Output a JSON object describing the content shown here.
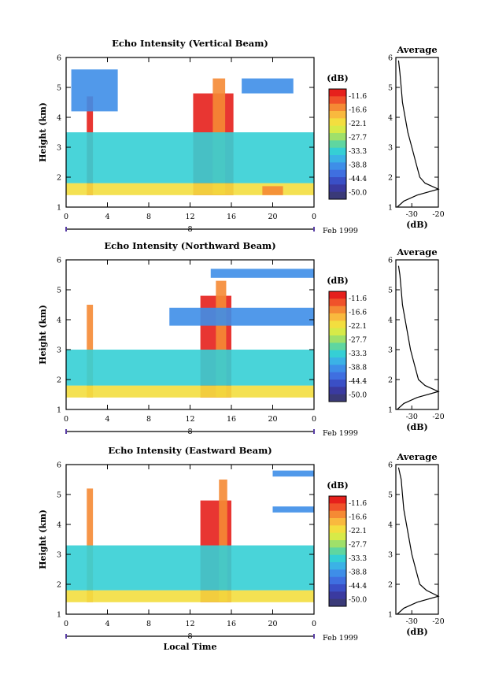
{
  "chart_data": [
    {
      "type": "heatmap",
      "title": "Echo Intensity (Vertical Beam)",
      "xlabel": "",
      "ylabel": "Height (km)",
      "xlim": [
        0,
        24
      ],
      "ylim": [
        1,
        6
      ],
      "xticks": [
        "0",
        "4",
        "8",
        "12",
        "16",
        "20",
        "0"
      ],
      "yticks": [
        "1",
        "2",
        "3",
        "4",
        "5",
        "6"
      ],
      "date_axis": {
        "label": "8",
        "month": "Feb 1999"
      },
      "colorbar": {
        "unit": "(dB)",
        "levels": [
          "-11.6",
          "-16.6",
          "-22.1",
          "-27.7",
          "-33.3",
          "-38.8",
          "-44.4",
          "-50.0"
        ]
      },
      "cells": [
        {
          "x0": 2.0,
          "x1": 2.6,
          "y0": 1.4,
          "y1": 4.7,
          "v": -11.6
        },
        {
          "x0": 12.3,
          "x1": 16.2,
          "y0": 1.4,
          "y1": 4.8,
          "v": -11.6
        },
        {
          "x0": 14.2,
          "x1": 15.4,
          "y0": 1.4,
          "y1": 5.3,
          "v": -16.6
        },
        {
          "x0": 0.0,
          "x1": 24.0,
          "y0": 1.4,
          "y1": 1.8,
          "v": -22.1
        },
        {
          "x0": 19.0,
          "x1": 21.0,
          "y0": 1.4,
          "y1": 1.7,
          "v": -16.6
        },
        {
          "x0": 0.0,
          "x1": 24.0,
          "y0": 1.8,
          "y1": 3.5,
          "v": -33.3
        },
        {
          "x0": 0.5,
          "x1": 5.0,
          "y0": 4.2,
          "y1": 5.6,
          "v": -38.8
        },
        {
          "x0": 17.0,
          "x1": 22.0,
          "y0": 4.8,
          "y1": 5.3,
          "v": -38.8
        }
      ],
      "average": {
        "title": "Average",
        "xlabel": "(dB)",
        "xticks": [
          "-30",
          "-20"
        ],
        "xlim": [
          -36,
          -20
        ],
        "ylim": [
          1,
          6
        ],
        "points": [
          [
            -35.5,
            1.0
          ],
          [
            -33.0,
            1.2
          ],
          [
            -28.0,
            1.4
          ],
          [
            -20.0,
            1.6
          ],
          [
            -25.0,
            1.8
          ],
          [
            -27.0,
            2.0
          ],
          [
            -28.5,
            2.5
          ],
          [
            -30.0,
            3.0
          ],
          [
            -31.5,
            3.5
          ],
          [
            -32.5,
            4.0
          ],
          [
            -33.5,
            4.5
          ],
          [
            -34.0,
            5.0
          ],
          [
            -34.5,
            5.5
          ],
          [
            -35.0,
            5.9
          ]
        ]
      }
    },
    {
      "type": "heatmap",
      "title": "Echo Intensity (Northward Beam)",
      "xlabel": "",
      "ylabel": "Height (km)",
      "xlim": [
        0,
        24
      ],
      "ylim": [
        1,
        6
      ],
      "xticks": [
        "0",
        "4",
        "8",
        "12",
        "16",
        "20",
        "0"
      ],
      "yticks": [
        "1",
        "2",
        "3",
        "4",
        "5",
        "6"
      ],
      "date_axis": {
        "label": "8",
        "month": "Feb 1999"
      },
      "colorbar": {
        "unit": "(dB)",
        "levels": [
          "-11.6",
          "-16.6",
          "-22.1",
          "-27.7",
          "-33.3",
          "-38.8",
          "-44.4",
          "-50.0"
        ]
      },
      "cells": [
        {
          "x0": 2.0,
          "x1": 2.6,
          "y0": 1.4,
          "y1": 4.5,
          "v": -16.6
        },
        {
          "x0": 13.0,
          "x1": 16.0,
          "y0": 1.4,
          "y1": 4.8,
          "v": -11.6
        },
        {
          "x0": 14.5,
          "x1": 15.5,
          "y0": 1.4,
          "y1": 5.3,
          "v": -16.6
        },
        {
          "x0": 0.0,
          "x1": 24.0,
          "y0": 1.4,
          "y1": 1.8,
          "v": -22.1
        },
        {
          "x0": 0.0,
          "x1": 24.0,
          "y0": 1.8,
          "y1": 3.0,
          "v": -33.3
        },
        {
          "x0": 10.0,
          "x1": 24.0,
          "y0": 3.8,
          "y1": 4.4,
          "v": -38.8
        },
        {
          "x0": 14.0,
          "x1": 24.0,
          "y0": 5.4,
          "y1": 5.7,
          "v": -38.8
        }
      ],
      "average": {
        "title": "Average",
        "xlabel": "(dB)",
        "xticks": [
          "-30",
          "-20"
        ],
        "xlim": [
          -36,
          -20
        ],
        "ylim": [
          1,
          6
        ],
        "points": [
          [
            -35.5,
            1.0
          ],
          [
            -33.0,
            1.2
          ],
          [
            -28.0,
            1.4
          ],
          [
            -20.0,
            1.6
          ],
          [
            -25.0,
            1.8
          ],
          [
            -27.5,
            2.0
          ],
          [
            -29.0,
            2.5
          ],
          [
            -30.5,
            3.0
          ],
          [
            -31.5,
            3.5
          ],
          [
            -32.5,
            4.0
          ],
          [
            -33.5,
            4.5
          ],
          [
            -34.0,
            5.0
          ],
          [
            -34.5,
            5.5
          ],
          [
            -35.0,
            5.8
          ]
        ]
      }
    },
    {
      "type": "heatmap",
      "title": "Echo Intensity (Eastward Beam)",
      "xlabel": "Local Time",
      "ylabel": "Height (km)",
      "xlim": [
        0,
        24
      ],
      "ylim": [
        1,
        6
      ],
      "xticks": [
        "0",
        "4",
        "8",
        "12",
        "16",
        "20",
        "0"
      ],
      "yticks": [
        "1",
        "2",
        "3",
        "4",
        "5",
        "6"
      ],
      "date_axis": {
        "label": "8",
        "month": "Feb 1999"
      },
      "colorbar": {
        "unit": "(dB)",
        "levels": [
          "-11.6",
          "-16.6",
          "-22.1",
          "-27.7",
          "-33.3",
          "-38.8",
          "-44.4",
          "-50.0"
        ]
      },
      "cells": [
        {
          "x0": 2.0,
          "x1": 2.6,
          "y0": 1.4,
          "y1": 5.2,
          "v": -16.6
        },
        {
          "x0": 13.0,
          "x1": 16.0,
          "y0": 1.4,
          "y1": 4.8,
          "v": -11.6
        },
        {
          "x0": 14.8,
          "x1": 15.6,
          "y0": 1.4,
          "y1": 5.5,
          "v": -16.6
        },
        {
          "x0": 0.0,
          "x1": 24.0,
          "y0": 1.4,
          "y1": 1.8,
          "v": -22.1
        },
        {
          "x0": 0.0,
          "x1": 24.0,
          "y0": 1.8,
          "y1": 3.3,
          "v": -33.3
        },
        {
          "x0": 20.0,
          "x1": 24.0,
          "y0": 4.4,
          "y1": 4.6,
          "v": -38.8
        },
        {
          "x0": 20.0,
          "x1": 24.0,
          "y0": 5.6,
          "y1": 5.8,
          "v": -38.8
        }
      ],
      "average": {
        "title": "Average",
        "xlabel": "(dB)",
        "xticks": [
          "-30",
          "-20"
        ],
        "xlim": [
          -36,
          -20
        ],
        "ylim": [
          1,
          6
        ],
        "points": [
          [
            -35.5,
            1.0
          ],
          [
            -33.0,
            1.2
          ],
          [
            -28.0,
            1.4
          ],
          [
            -20.0,
            1.6
          ],
          [
            -24.5,
            1.8
          ],
          [
            -27.0,
            2.0
          ],
          [
            -28.5,
            2.5
          ],
          [
            -30.0,
            3.0
          ],
          [
            -31.0,
            3.5
          ],
          [
            -32.0,
            4.0
          ],
          [
            -33.0,
            4.5
          ],
          [
            -33.5,
            5.0
          ],
          [
            -34.0,
            5.5
          ],
          [
            -35.0,
            5.9
          ]
        ]
      }
    }
  ],
  "colors": {
    "scale": [
      "#e6201c",
      "#f0522a",
      "#f58a34",
      "#f9b93e",
      "#f3de3f",
      "#d7ea48",
      "#9fe06a",
      "#5fd6a0",
      "#35cfd5",
      "#3bb2e6",
      "#3e8ee8",
      "#3f6fe0",
      "#3a4fc6",
      "#3a3aa0",
      "#3a3a78"
    ],
    "date_line": "#5a3ea6"
  }
}
